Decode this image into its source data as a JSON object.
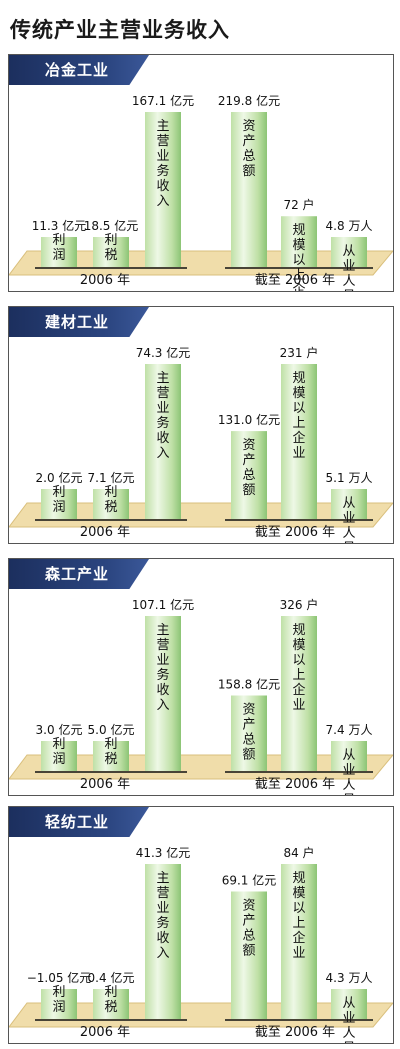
{
  "title": "传统产业主营业务收入",
  "colors": {
    "header_bg": "#243a70",
    "bar_light": "#eef8e6",
    "bar_mid": "#bfe0a6",
    "bar_dark": "#8cc475",
    "floor": "#f0ddaa",
    "floor_edge": "#d9bf7c"
  },
  "chart_data": [
    {
      "type": "bar",
      "title": "冶金工业",
      "groups": [
        {
          "label": "2006 年",
          "bars": [
            {
              "name": "利润",
              "value": 11.3,
              "unit": "亿元",
              "value_label": "11.3 亿元"
            },
            {
              "name": "利税",
              "value": 18.5,
              "unit": "亿元",
              "value_label": "18.5 亿元"
            },
            {
              "name": "主营业务收入",
              "value": 167.1,
              "unit": "亿元",
              "value_label": "167.1 亿元"
            }
          ]
        },
        {
          "label": "截至 2006 年",
          "bars": [
            {
              "name": "资产总额",
              "value": 219.8,
              "unit": "亿元",
              "value_label": "219.8 亿元"
            },
            {
              "name": "规模以上企业",
              "value": 72,
              "unit": "户",
              "value_label": "72 户"
            },
            {
              "name": "从业人员",
              "value": 4.8,
              "unit": "万人",
              "value_label": "4.8 万人"
            }
          ]
        }
      ]
    },
    {
      "type": "bar",
      "title": "建材工业",
      "groups": [
        {
          "label": "2006 年",
          "bars": [
            {
              "name": "利润",
              "value": 2.0,
              "unit": "亿元",
              "value_label": "2.0 亿元"
            },
            {
              "name": "利税",
              "value": 7.1,
              "unit": "亿元",
              "value_label": "7.1 亿元"
            },
            {
              "name": "主营业务收入",
              "value": 74.3,
              "unit": "亿元",
              "value_label": "74.3 亿元"
            }
          ]
        },
        {
          "label": "截至 2006 年",
          "bars": [
            {
              "name": "资产总额",
              "value": 131.0,
              "unit": "亿元",
              "value_label": "131.0 亿元"
            },
            {
              "name": "规模以上企业",
              "value": 231,
              "unit": "户",
              "value_label": "231 户"
            },
            {
              "name": "从业人员",
              "value": 5.1,
              "unit": "万人",
              "value_label": "5.1 万人"
            }
          ]
        }
      ]
    },
    {
      "type": "bar",
      "title": "森工产业",
      "groups": [
        {
          "label": "2006 年",
          "bars": [
            {
              "name": "利润",
              "value": 3.0,
              "unit": "亿元",
              "value_label": "3.0 亿元"
            },
            {
              "name": "利税",
              "value": 5.0,
              "unit": "亿元",
              "value_label": "5.0 亿元"
            },
            {
              "name": "主营业务收入",
              "value": 107.1,
              "unit": "亿元",
              "value_label": "107.1 亿元"
            }
          ]
        },
        {
          "label": "截至 2006 年",
          "bars": [
            {
              "name": "资产总额",
              "value": 158.8,
              "unit": "亿元",
              "value_label": "158.8 亿元"
            },
            {
              "name": "规模以上企业",
              "value": 326,
              "unit": "户",
              "value_label": "326 户"
            },
            {
              "name": "从业人员",
              "value": 7.4,
              "unit": "万人",
              "value_label": "7.4 万人"
            }
          ]
        }
      ]
    },
    {
      "type": "bar",
      "title": "轻纺工业",
      "groups": [
        {
          "label": "2006 年",
          "bars": [
            {
              "name": "利润",
              "value": -1.05,
              "unit": "亿元",
              "value_label": "−1.05 亿元"
            },
            {
              "name": "利税",
              "value": 0.4,
              "unit": "亿元",
              "value_label": "0.4 亿元"
            },
            {
              "name": "主营业务收入",
              "value": 41.3,
              "unit": "亿元",
              "value_label": "41.3 亿元"
            }
          ]
        },
        {
          "label": "截至 2006 年",
          "bars": [
            {
              "name": "资产总额",
              "value": 69.1,
              "unit": "亿元",
              "value_label": "69.1 亿元"
            },
            {
              "name": "规模以上企业",
              "value": 84,
              "unit": "户",
              "value_label": "84 户"
            },
            {
              "name": "从业人员",
              "value": 4.3,
              "unit": "万人",
              "value_label": "4.3 万人"
            }
          ]
        }
      ]
    }
  ]
}
